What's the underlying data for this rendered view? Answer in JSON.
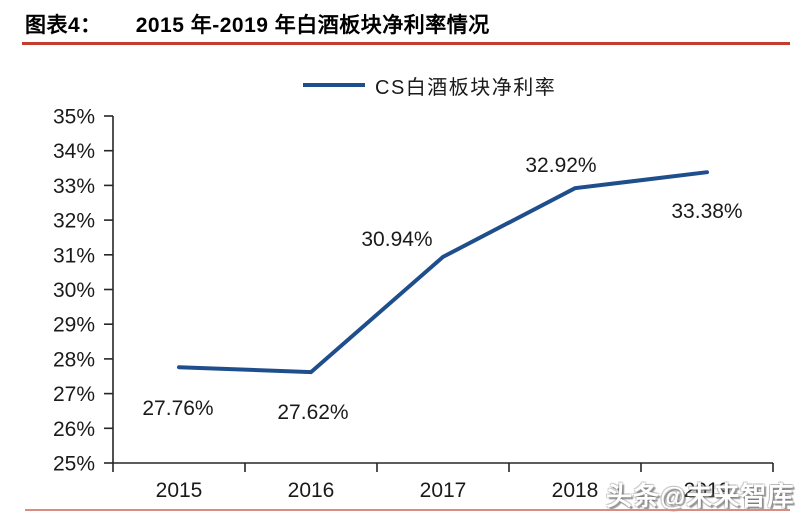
{
  "header": {
    "label": "图表4：",
    "title": "2015 年-2019 年白酒板块净利率情况"
  },
  "legend": {
    "label": "CS白酒板块净利率"
  },
  "watermark": {
    "text": "头条@未来智库"
  },
  "colors": {
    "line": "#1F4E8C",
    "header_rule": "#C43C2B",
    "footer_rule": "#D98C82",
    "axis": "#262626",
    "label_text": "#1a1a1a"
  },
  "chart_data": {
    "type": "line",
    "categories": [
      "2015",
      "2016",
      "2017",
      "2018",
      "2019"
    ],
    "values": [
      27.76,
      27.62,
      30.94,
      32.92,
      33.38
    ],
    "point_labels": [
      "27.76%",
      "27.62%",
      "30.94%",
      "32.92%",
      "33.38%"
    ],
    "y_tick_labels": [
      "35%",
      "34%",
      "33%",
      "32%",
      "31%",
      "30%",
      "29%",
      "28%",
      "27%",
      "26%",
      "25%"
    ],
    "series": [
      {
        "name": "CS白酒板块净利率",
        "values": [
          27.76,
          27.62,
          30.94,
          32.92,
          33.38
        ]
      }
    ],
    "title": "2015 年-2019 年白酒板块净利率情况",
    "xlabel": "",
    "ylabel": "",
    "ylim": [
      25,
      35
    ],
    "y_step": 1,
    "grid": false,
    "legend_position": "top"
  }
}
